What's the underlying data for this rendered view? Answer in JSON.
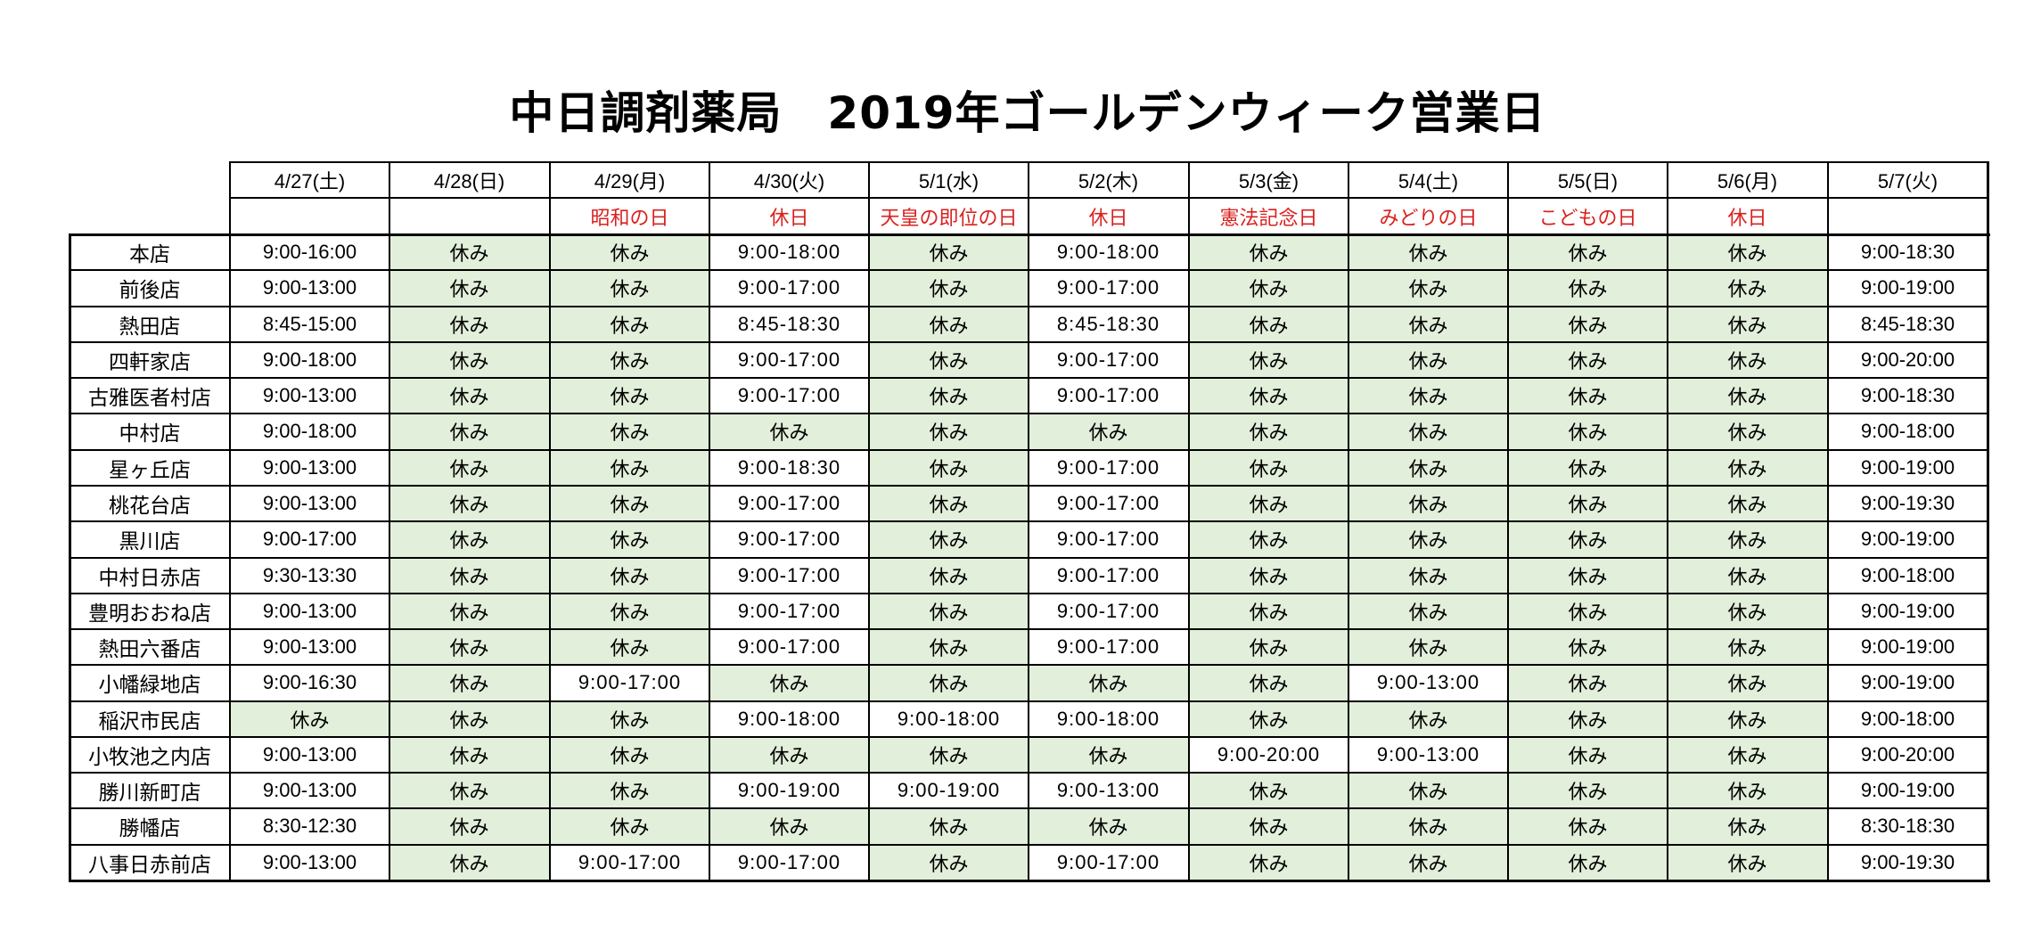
{
  "title": "中日調剤薬局　2019年ゴールデンウィーク営業日",
  "colors": {
    "closed_fill": "#e2efda",
    "holiday_text": "#d9211f",
    "border": "#000000"
  },
  "closed_label": "休み",
  "columns": [
    {
      "date": "4/27(土)",
      "holiday": ""
    },
    {
      "date": "4/28(日)",
      "holiday": ""
    },
    {
      "date": "4/29(月)",
      "holiday": "昭和の日"
    },
    {
      "date": "4/30(火)",
      "holiday": "休日"
    },
    {
      "date": "5/1(水)",
      "holiday": "天皇の即位の日"
    },
    {
      "date": "5/2(木)",
      "holiday": "休日"
    },
    {
      "date": "5/3(金)",
      "holiday": "憲法記念日"
    },
    {
      "date": "5/4(土)",
      "holiday": "みどりの日"
    },
    {
      "date": "5/5(日)",
      "holiday": "こどもの日"
    },
    {
      "date": "5/6(月)",
      "holiday": "休日"
    },
    {
      "date": "5/7(火)",
      "holiday": ""
    }
  ],
  "stores": [
    {
      "name": "本店",
      "hours": [
        "9:00-16:00",
        "休み",
        "休み",
        "9:00-18:00",
        "休み",
        "9:00-18:00",
        "休み",
        "休み",
        "休み",
        "休み",
        "9:00-18:30"
      ]
    },
    {
      "name": "前後店",
      "hours": [
        "9:00-13:00",
        "休み",
        "休み",
        "9:00-17:00",
        "休み",
        "9:00-17:00",
        "休み",
        "休み",
        "休み",
        "休み",
        "9:00-19:00"
      ]
    },
    {
      "name": "熱田店",
      "hours": [
        "8:45-15:00",
        "休み",
        "休み",
        "8:45-18:30",
        "休み",
        "8:45-18:30",
        "休み",
        "休み",
        "休み",
        "休み",
        "8:45-18:30"
      ]
    },
    {
      "name": "四軒家店",
      "hours": [
        "9:00-18:00",
        "休み",
        "休み",
        "9:00-17:00",
        "休み",
        "9:00-17:00",
        "休み",
        "休み",
        "休み",
        "休み",
        "9:00-20:00"
      ]
    },
    {
      "name": "古雅医者村店",
      "hours": [
        "9:00-13:00",
        "休み",
        "休み",
        "9:00-17:00",
        "休み",
        "9:00-17:00",
        "休み",
        "休み",
        "休み",
        "休み",
        "9:00-18:30"
      ]
    },
    {
      "name": "中村店",
      "hours": [
        "9:00-18:00",
        "休み",
        "休み",
        "休み",
        "休み",
        "休み",
        "休み",
        "休み",
        "休み",
        "休み",
        "9:00-18:00"
      ]
    },
    {
      "name": "星ヶ丘店",
      "hours": [
        "9:00-13:00",
        "休み",
        "休み",
        "9:00-18:30",
        "休み",
        "9:00-17:00",
        "休み",
        "休み",
        "休み",
        "休み",
        "9:00-19:00"
      ]
    },
    {
      "name": "桃花台店",
      "hours": [
        "9:00-13:00",
        "休み",
        "休み",
        "9:00-17:00",
        "休み",
        "9:00-17:00",
        "休み",
        "休み",
        "休み",
        "休み",
        "9:00-19:30"
      ]
    },
    {
      "name": "黒川店",
      "hours": [
        "9:00-17:00",
        "休み",
        "休み",
        "9:00-17:00",
        "休み",
        "9:00-17:00",
        "休み",
        "休み",
        "休み",
        "休み",
        "9:00-19:00"
      ]
    },
    {
      "name": "中村日赤店",
      "hours": [
        "9:30-13:30",
        "休み",
        "休み",
        "9:00-17:00",
        "休み",
        "9:00-17:00",
        "休み",
        "休み",
        "休み",
        "休み",
        "9:00-18:00"
      ]
    },
    {
      "name": "豊明おおね店",
      "hours": [
        "9:00-13:00",
        "休み",
        "休み",
        "9:00-17:00",
        "休み",
        "9:00-17:00",
        "休み",
        "休み",
        "休み",
        "休み",
        "9:00-19:00"
      ]
    },
    {
      "name": "熱田六番店",
      "hours": [
        "9:00-13:00",
        "休み",
        "休み",
        "9:00-17:00",
        "休み",
        "9:00-17:00",
        "休み",
        "休み",
        "休み",
        "休み",
        "9:00-19:00"
      ]
    },
    {
      "name": "小幡緑地店",
      "hours": [
        "9:00-16:30",
        "休み",
        "9:00-17:00",
        "休み",
        "休み",
        "休み",
        "休み",
        "9:00-13:00",
        "休み",
        "休み",
        "9:00-19:00"
      ]
    },
    {
      "name": "稲沢市民店",
      "hours": [
        "休み",
        "休み",
        "休み",
        "9:00-18:00",
        "9:00-18:00",
        "9:00-18:00",
        "休み",
        "休み",
        "休み",
        "休み",
        "9:00-18:00"
      ]
    },
    {
      "name": "小牧池之内店",
      "hours": [
        "9:00-13:00",
        "休み",
        "休み",
        "休み",
        "休み",
        "休み",
        "9:00-20:00",
        "9:00-13:00",
        "休み",
        "休み",
        "9:00-20:00"
      ]
    },
    {
      "name": "勝川新町店",
      "hours": [
        "9:00-13:00",
        "休み",
        "休み",
        "9:00-19:00",
        "9:00-19:00",
        "9:00-13:00",
        "休み",
        "休み",
        "休み",
        "休み",
        "9:00-19:00"
      ]
    },
    {
      "name": "勝幡店",
      "hours": [
        "8:30-12:30",
        "休み",
        "休み",
        "休み",
        "休み",
        "休み",
        "休み",
        "休み",
        "休み",
        "休み",
        "8:30-18:30"
      ]
    },
    {
      "name": "八事日赤前店",
      "hours": [
        "9:00-13:00",
        "休み",
        "9:00-17:00",
        "9:00-17:00",
        "休み",
        "9:00-17:00",
        "休み",
        "休み",
        "休み",
        "休み",
        "9:00-19:30"
      ]
    }
  ]
}
